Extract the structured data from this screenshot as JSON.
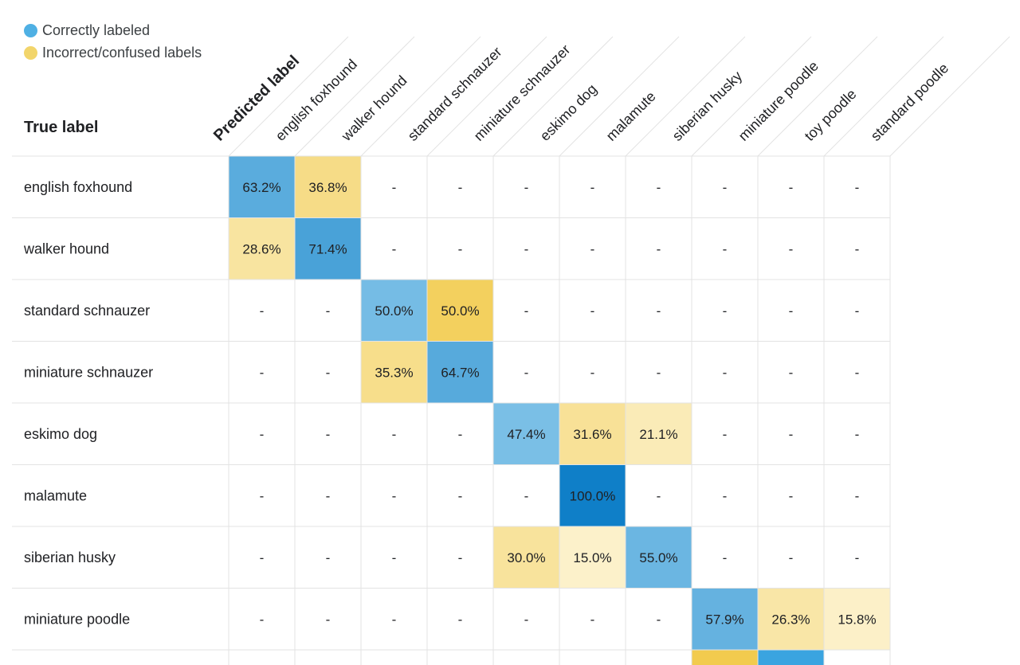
{
  "legend": [
    {
      "label": "Correctly labeled",
      "color": "#4fb0e4"
    },
    {
      "label": "Incorrect/confused labels",
      "color": "#f2d56b"
    }
  ],
  "true_label_title": "True label",
  "predicted_label_title": "Predicted label",
  "colors": {
    "grid_line": "#e3e3e3",
    "correct_light": "#9ed4f0",
    "correct_dark": "#0f7fc8",
    "incorrect_light": "#fdf6da",
    "incorrect_dark": "#f2cb4e"
  },
  "chart_data": {
    "type": "heatmap",
    "title": "",
    "xlabel": "Predicted label",
    "ylabel": "True label",
    "columns": [
      "english foxhound",
      "walker hound",
      "standard schnauzer",
      "miniature schnauzer",
      "eskimo dog",
      "malamute",
      "siberian husky",
      "miniature poodle",
      "toy poodle",
      "standard poodle"
    ],
    "rows": [
      "english foxhound",
      "walker hound",
      "standard schnauzer",
      "miniature schnauzer",
      "eskimo dog",
      "malamute",
      "siberian husky",
      "miniature poodle"
    ],
    "values": [
      [
        63.2,
        36.8,
        null,
        null,
        null,
        null,
        null,
        null,
        null,
        null
      ],
      [
        28.6,
        71.4,
        null,
        null,
        null,
        null,
        null,
        null,
        null,
        null
      ],
      [
        null,
        null,
        50.0,
        50.0,
        null,
        null,
        null,
        null,
        null,
        null
      ],
      [
        null,
        null,
        35.3,
        64.7,
        null,
        null,
        null,
        null,
        null,
        null
      ],
      [
        null,
        null,
        null,
        null,
        47.4,
        31.6,
        21.1,
        null,
        null,
        null
      ],
      [
        null,
        null,
        null,
        null,
        null,
        100.0,
        null,
        null,
        null,
        null
      ],
      [
        null,
        null,
        null,
        null,
        30.0,
        15.0,
        55.0,
        null,
        null,
        null
      ],
      [
        null,
        null,
        null,
        null,
        null,
        null,
        null,
        57.9,
        26.3,
        15.8
      ]
    ],
    "empty_symbol": "-",
    "value_suffix": "%"
  }
}
